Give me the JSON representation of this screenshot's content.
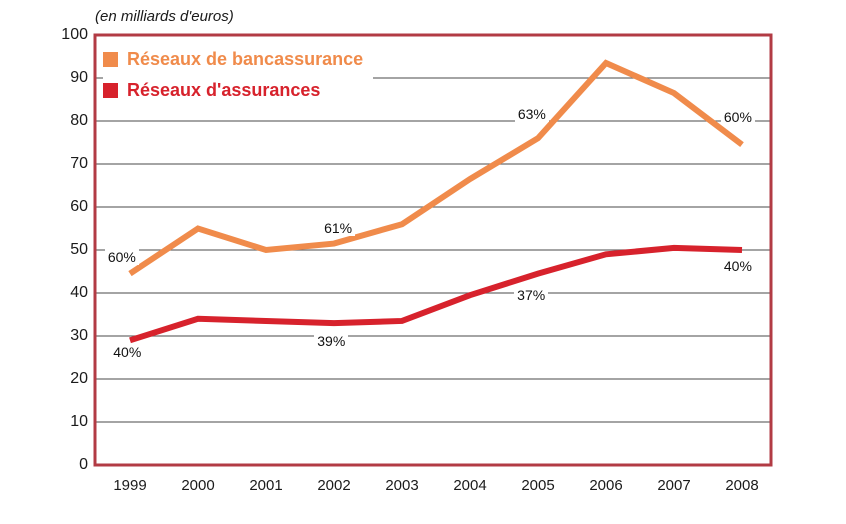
{
  "chart": {
    "unit_note": "(en milliards d'euros)"
  },
  "legend": {
    "items": [
      {
        "label": "Réseaux de bancassurance",
        "color": "#F08B4B"
      },
      {
        "label": "Réseaux d'assurances",
        "color": "#D7222C"
      }
    ]
  },
  "chart_data": {
    "type": "line",
    "title": "",
    "xlabel": "",
    "ylabel": "(en milliards d'euros)",
    "x": [
      1999,
      2000,
      2001,
      2002,
      2003,
      2004,
      2005,
      2006,
      2007,
      2008
    ],
    "series": [
      {
        "name": "Réseaux de bancassurance",
        "color": "#F08B4B",
        "values": [
          44.5,
          55,
          50,
          51.5,
          56,
          66.5,
          76,
          93.5,
          86.5,
          74.5
        ]
      },
      {
        "name": "Réseaux d'assurances",
        "color": "#D7222C",
        "values": [
          29,
          34,
          33.5,
          33,
          33.5,
          39.5,
          44.5,
          49,
          50.5,
          50
        ]
      }
    ],
    "annotations": [
      {
        "text": "60%",
        "x": 1998.88,
        "y": 48.4
      },
      {
        "text": "40%",
        "x": 1998.96,
        "y": 26.3
      },
      {
        "text": "61%",
        "x": 2002.06,
        "y": 55.1
      },
      {
        "text": "39%",
        "x": 2001.96,
        "y": 28.8
      },
      {
        "text": "63%",
        "x": 2004.91,
        "y": 81.6
      },
      {
        "text": "37%",
        "x": 2004.9,
        "y": 39.5
      },
      {
        "text": "60%",
        "x": 2007.94,
        "y": 80.9
      },
      {
        "text": "40%",
        "x": 2007.94,
        "y": 46.3
      }
    ],
    "ylim": [
      0,
      100
    ],
    "ytick_step": 10,
    "grid": true,
    "grid_color": "#6e6e6e",
    "frame_color": "#B23B44",
    "legend_position": "top-left-inside"
  }
}
